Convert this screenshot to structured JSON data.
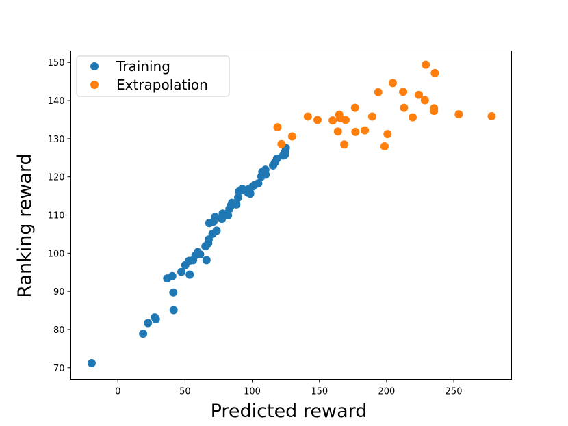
{
  "chart_data": {
    "type": "scatter",
    "xlabel": "Predicted reward",
    "ylabel": "Ranking reward",
    "xlim": [
      -35,
      293
    ],
    "ylim": [
      67,
      153
    ],
    "xticks": [
      0,
      50,
      100,
      150,
      200,
      250
    ],
    "yticks": [
      70,
      80,
      90,
      100,
      110,
      120,
      130,
      140,
      150
    ],
    "grid": false,
    "legend_position": "top-left",
    "series": [
      {
        "name": "Training",
        "color": "#1f77b4",
        "points": [
          [
            -19.5,
            71.2
          ],
          [
            18.8,
            78.9
          ],
          [
            22.4,
            81.7
          ],
          [
            27.5,
            83.2
          ],
          [
            28.3,
            82.7
          ],
          [
            41.5,
            85.1
          ],
          [
            41.3,
            89.7
          ],
          [
            36.7,
            93.4
          ],
          [
            40.5,
            94.0
          ],
          [
            47.3,
            95.1
          ],
          [
            53.5,
            94.4
          ],
          [
            50.2,
            96.9
          ],
          [
            53.0,
            98.0
          ],
          [
            56.0,
            98.2
          ],
          [
            57.8,
            99.5
          ],
          [
            59.5,
            100.3
          ],
          [
            61.2,
            99.7
          ],
          [
            66.0,
            98.2
          ],
          [
            65.2,
            101.8
          ],
          [
            67.3,
            102.6
          ],
          [
            67.6,
            103.6
          ],
          [
            68.0,
            107.9
          ],
          [
            70.5,
            105.1
          ],
          [
            71.2,
            108.3
          ],
          [
            72.4,
            109.5
          ],
          [
            73.5,
            105.9
          ],
          [
            77.4,
            109.0
          ],
          [
            78.0,
            110.4
          ],
          [
            80.4,
            110.3
          ],
          [
            82.0,
            109.9
          ],
          [
            83.0,
            111.6
          ],
          [
            84.0,
            112.4
          ],
          [
            85.0,
            113.2
          ],
          [
            87.2,
            113.0
          ],
          [
            88.2,
            112.8
          ],
          [
            89.5,
            114.6
          ],
          [
            90.2,
            116.2
          ],
          [
            92.5,
            116.9
          ],
          [
            94.1,
            116.5
          ],
          [
            96.8,
            115.9
          ],
          [
            97.8,
            116.9
          ],
          [
            98.5,
            115.6
          ],
          [
            100.4,
            117.5
          ],
          [
            102.0,
            118.0
          ],
          [
            104.5,
            118.3
          ],
          [
            106.8,
            120.1
          ],
          [
            107.5,
            121.3
          ],
          [
            108.0,
            120.8
          ],
          [
            109.8,
            121.9
          ],
          [
            110.0,
            120.6
          ],
          [
            115.5,
            123.0
          ],
          [
            116.9,
            123.8
          ],
          [
            118.4,
            124.8
          ],
          [
            123.0,
            125.6
          ],
          [
            124.5,
            126.6
          ],
          [
            125.0,
            127.6
          ],
          [
            124.3,
            125.8
          ]
        ]
      },
      {
        "name": "Extrapolation",
        "color": "#ff7f0e",
        "points": [
          [
            118.8,
            133.0
          ],
          [
            121.8,
            128.6
          ],
          [
            129.7,
            130.6
          ],
          [
            141.4,
            135.8
          ],
          [
            148.6,
            134.9
          ],
          [
            159.9,
            134.8
          ],
          [
            163.8,
            131.9
          ],
          [
            164.8,
            136.3
          ],
          [
            165.5,
            135.4
          ],
          [
            168.5,
            128.5
          ],
          [
            169.5,
            134.9
          ],
          [
            176.5,
            138.1
          ],
          [
            176.8,
            131.8
          ],
          [
            183.8,
            132.2
          ],
          [
            189.3,
            135.8
          ],
          [
            193.8,
            142.2
          ],
          [
            198.5,
            128.0
          ],
          [
            200.7,
            131.2
          ],
          [
            204.6,
            144.6
          ],
          [
            212.3,
            142.3
          ],
          [
            213.0,
            138.1
          ],
          [
            219.4,
            135.6
          ],
          [
            224.0,
            141.5
          ],
          [
            228.5,
            140.1
          ],
          [
            229.2,
            149.4
          ],
          [
            235.3,
            138.0
          ],
          [
            235.9,
            147.2
          ],
          [
            235.3,
            137.3
          ],
          [
            253.7,
            136.4
          ],
          [
            278.2,
            135.9
          ]
        ]
      }
    ]
  }
}
